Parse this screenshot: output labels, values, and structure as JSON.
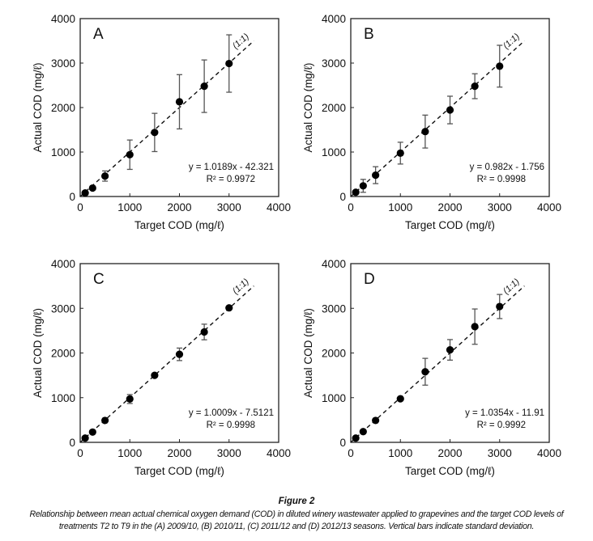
{
  "figure": {
    "title": "Figure 2",
    "caption_line1": "Relationship between mean actual chemical oxygen demand (COD) in diluted winery wastewater applied to grapevines and the target COD levels of",
    "caption_line2": "treatments T2 to T9 in the (A) 2009/10, (B) 2010/11, (C) 2011/12 and (D) 2012/13 seasons. Vertical bars indicate standard deviation."
  },
  "chart_data": [
    {
      "type": "scatter",
      "panel": "A",
      "xlabel": "Target COD (mg/ℓ)",
      "ylabel": "Actual COD (mg/ℓ)",
      "xlim": [
        0,
        4000
      ],
      "ylim": [
        0,
        4000
      ],
      "xticks": [
        "0",
        "1000",
        "2000",
        "3000",
        "4000"
      ],
      "yticks": [
        "0",
        "1000",
        "2000",
        "3000",
        "4000"
      ],
      "grid": false,
      "reference_line": {
        "label": "(1:1)",
        "from": 0,
        "to": 3500
      },
      "equation": "y = 1.0189x - 42.321",
      "r2": "R² = 0.9972",
      "x": [
        100,
        250,
        500,
        1000,
        1500,
        2000,
        2500,
        3000
      ],
      "y": [
        80,
        190,
        460,
        940,
        1440,
        2130,
        2480,
        2990
      ],
      "error": [
        40,
        60,
        115,
        330,
        430,
        610,
        590,
        645
      ]
    },
    {
      "type": "scatter",
      "panel": "B",
      "xlabel": "Target COD (mg/ℓ)",
      "ylabel": "Actual COD (mg/ℓ)",
      "xlim": [
        0,
        4000
      ],
      "ylim": [
        0,
        4000
      ],
      "xticks": [
        "0",
        "1000",
        "2000",
        "3000",
        "4000"
      ],
      "yticks": [
        "0",
        "1000",
        "2000",
        "3000",
        "4000"
      ],
      "grid": false,
      "reference_line": {
        "label": "(1:1)",
        "from": 0,
        "to": 3500
      },
      "equation": "y = 0.982x - 1.756",
      "r2": "R² = 0.9998",
      "x": [
        100,
        250,
        500,
        1000,
        1500,
        2000,
        2500,
        3000
      ],
      "y": [
        95,
        240,
        480,
        975,
        1460,
        1945,
        2480,
        2930
      ],
      "error": [
        30,
        145,
        190,
        245,
        370,
        310,
        280,
        470
      ]
    },
    {
      "type": "scatter",
      "panel": "C",
      "xlabel": "Target COD (mg/ℓ)",
      "ylabel": "Actual COD (mg/ℓ)",
      "xlim": [
        0,
        4000
      ],
      "ylim": [
        0,
        4000
      ],
      "xticks": [
        "0",
        "1000",
        "2000",
        "3000",
        "4000"
      ],
      "yticks": [
        "0",
        "1000",
        "2000",
        "3000",
        "4000"
      ],
      "grid": false,
      "reference_line": {
        "label": "(1:1)",
        "from": 0,
        "to": 3500
      },
      "equation": "y = 1.0009x - 7.5121",
      "r2": "R² = 0.9998",
      "x": [
        100,
        250,
        500,
        1000,
        1500,
        2000,
        2500,
        3000
      ],
      "y": [
        95,
        230,
        490,
        970,
        1500,
        1970,
        2470,
        3010
      ],
      "error": [
        20,
        30,
        60,
        100,
        80,
        140,
        175,
        60
      ]
    },
    {
      "type": "scatter",
      "panel": "D",
      "xlabel": "Target COD (mg/ℓ)",
      "ylabel": "Actual COD (mg/ℓ)",
      "xlim": [
        0,
        4000
      ],
      "ylim": [
        0,
        4000
      ],
      "xticks": [
        "0",
        "1000",
        "2000",
        "3000",
        "4000"
      ],
      "yticks": [
        "0",
        "1000",
        "2000",
        "3000",
        "4000"
      ],
      "grid": false,
      "reference_line": {
        "label": "(1:1)",
        "from": 0,
        "to": 3500
      },
      "equation": "y = 1.0354x - 11.91",
      "r2": "R² = 0.9992",
      "x": [
        100,
        250,
        500,
        1000,
        1500,
        2000,
        2500,
        3000
      ],
      "y": [
        95,
        240,
        490,
        975,
        1580,
        2070,
        2590,
        3040
      ],
      "error": [
        10,
        20,
        30,
        40,
        300,
        230,
        395,
        270
      ]
    }
  ]
}
